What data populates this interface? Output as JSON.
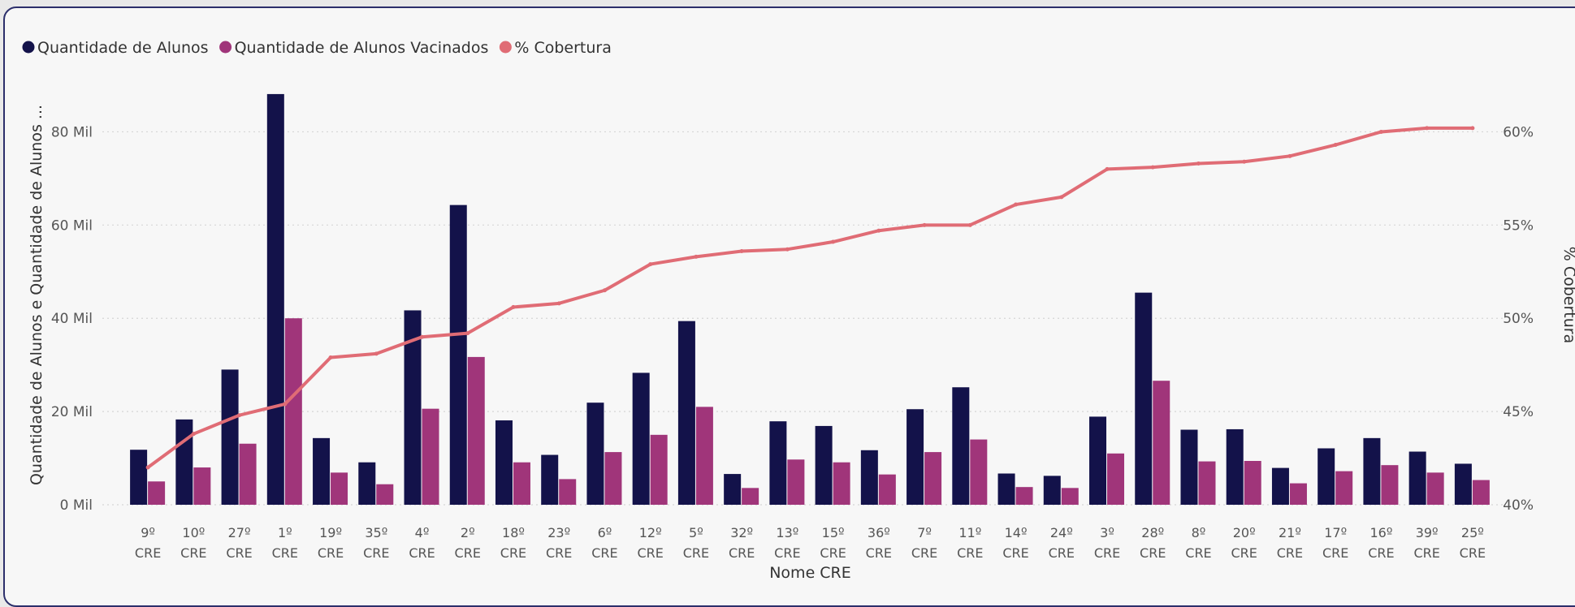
{
  "chart_data": {
    "type": "bar",
    "title": "",
    "legend_placement": "top-left",
    "legend": [
      {
        "label": "Quantidade de Alunos",
        "color": "#13124a"
      },
      {
        "label": "Quantidade de Alunos Vacinados",
        "color": "#a0357a"
      },
      {
        "label": "% Cobertura",
        "color": "#e06c75"
      }
    ],
    "xlabel": "Nome CRE",
    "ylabel": "Quantidade de Alunos e Quantidade de Alunos ...",
    "y2label": "% Cobertura",
    "ylim": [
      0,
      90000
    ],
    "y2lim": [
      40,
      62.5
    ],
    "yticks": [
      {
        "value": 0,
        "label": "0 Mil"
      },
      {
        "value": 20000,
        "label": "20 Mil"
      },
      {
        "value": 40000,
        "label": "40 Mil"
      },
      {
        "value": 60000,
        "label": "60 Mil"
      },
      {
        "value": 80000,
        "label": "80 Mil"
      }
    ],
    "y2ticks": [
      {
        "value": 40,
        "label": "40%"
      },
      {
        "value": 45,
        "label": "45%"
      },
      {
        "value": 50,
        "label": "50%"
      },
      {
        "value": 55,
        "label": "55%"
      },
      {
        "value": 60,
        "label": "60%"
      }
    ],
    "grid": true,
    "categories": [
      {
        "line1": "9º",
        "line2": "CRE"
      },
      {
        "line1": "10º",
        "line2": "CRE"
      },
      {
        "line1": "27º",
        "line2": "CRE"
      },
      {
        "line1": "1º",
        "line2": "CRE"
      },
      {
        "line1": "19º",
        "line2": "CRE"
      },
      {
        "line1": "35º",
        "line2": "CRE"
      },
      {
        "line1": "4º",
        "line2": "CRE"
      },
      {
        "line1": "2º",
        "line2": "CRE"
      },
      {
        "line1": "18º",
        "line2": "CRE"
      },
      {
        "line1": "23º",
        "line2": "CRE"
      },
      {
        "line1": "6º",
        "line2": "CRE"
      },
      {
        "line1": "12º",
        "line2": "CRE"
      },
      {
        "line1": "5º",
        "line2": "CRE"
      },
      {
        "line1": "32º",
        "line2": "CRE"
      },
      {
        "line1": "13º",
        "line2": "CRE"
      },
      {
        "line1": "15º",
        "line2": "CRE"
      },
      {
        "line1": "36º",
        "line2": "CRE"
      },
      {
        "line1": "7º",
        "line2": "CRE"
      },
      {
        "line1": "11º",
        "line2": "CRE"
      },
      {
        "line1": "14º",
        "line2": "CRE"
      },
      {
        "line1": "24º",
        "line2": "CRE"
      },
      {
        "line1": "3º",
        "line2": "CRE"
      },
      {
        "line1": "28º",
        "line2": "CRE"
      },
      {
        "line1": "8º",
        "line2": "CRE"
      },
      {
        "line1": "20º",
        "line2": "CRE"
      },
      {
        "line1": "21º",
        "line2": "CRE"
      },
      {
        "line1": "17º",
        "line2": "CRE"
      },
      {
        "line1": "16º",
        "line2": "CRE"
      },
      {
        "line1": "39º",
        "line2": "CRE"
      },
      {
        "line1": "25º",
        "line2": "CRE"
      }
    ],
    "series": [
      {
        "name": "Quantidade de Alunos",
        "type": "bar",
        "axis": "left",
        "color": "#13124a",
        "values": [
          11800,
          18300,
          29000,
          88100,
          14300,
          9100,
          41700,
          64300,
          18100,
          10700,
          21900,
          28300,
          39400,
          6600,
          17900,
          16900,
          11700,
          20500,
          25200,
          6700,
          6200,
          18900,
          45500,
          16100,
          16200,
          7900,
          12100,
          14300,
          11400,
          8800
        ]
      },
      {
        "name": "Quantidade de Alunos Vacinados",
        "type": "bar",
        "axis": "left",
        "color": "#a0357a",
        "values": [
          5000,
          8000,
          13100,
          40000,
          6900,
          4400,
          20600,
          31700,
          9100,
          5500,
          11300,
          15000,
          21000,
          3600,
          9700,
          9100,
          6500,
          11300,
          14000,
          3800,
          3600,
          11000,
          26600,
          9300,
          9400,
          4600,
          7200,
          8500,
          6900,
          5300
        ]
      },
      {
        "name": "% Cobertura",
        "type": "line",
        "axis": "right",
        "color": "#e06c75",
        "values": [
          42.0,
          43.8,
          44.8,
          45.4,
          47.9,
          48.1,
          49.0,
          49.2,
          50.6,
          50.8,
          51.5,
          52.9,
          53.3,
          53.6,
          53.7,
          54.1,
          54.7,
          55.0,
          55.0,
          56.1,
          56.5,
          58.0,
          58.1,
          58.3,
          58.4,
          58.7,
          59.3,
          60.0,
          60.2,
          60.2
        ]
      }
    ]
  }
}
